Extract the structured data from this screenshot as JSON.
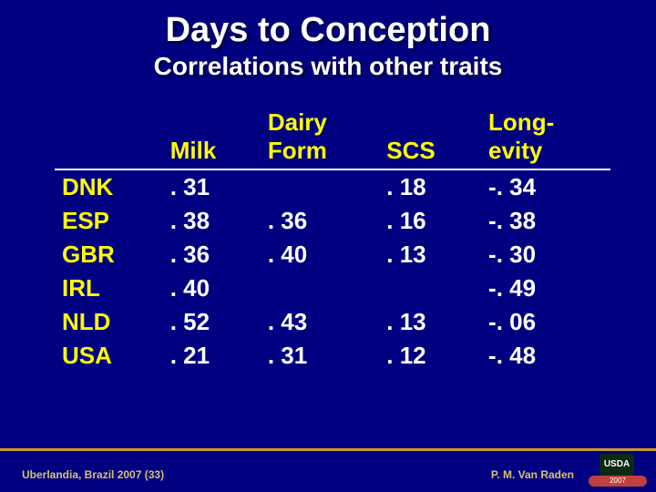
{
  "title": "Days to Conception",
  "subtitle": "Correlations with other traits",
  "columns": [
    "",
    "Milk",
    "Dairy Form",
    "SCS",
    "Long-evity"
  ],
  "rows": [
    {
      "label": "DNK",
      "milk": ". 31",
      "dairy": "",
      "scs": ". 18",
      "long": "-. 34"
    },
    {
      "label": "ESP",
      "milk": ". 38",
      "dairy": ". 36",
      "scs": ". 16",
      "long": "-. 38"
    },
    {
      "label": "GBR",
      "milk": ". 36",
      "dairy": ". 40",
      "scs": ". 13",
      "long": "-. 30"
    },
    {
      "label": "IRL",
      "milk": ". 40",
      "dairy": "",
      "scs": "",
      "long": "-. 49"
    },
    {
      "label": "NLD",
      "milk": ". 52",
      "dairy": ". 43",
      "scs": ". 13",
      "long": "-. 06"
    },
    {
      "label": "USA",
      "milk": ". 21",
      "dairy": ". 31",
      "scs": ". 12",
      "long": "-. 48"
    }
  ],
  "footer": {
    "left": "Uberlandia, Brazil 2007 (33)",
    "right": "P. M. Van Raden",
    "logo_text": "USDA",
    "year": "2007"
  },
  "colors": {
    "background": "#000080",
    "heading": "#ffff00",
    "body": "#ffffff",
    "footer_line": "#cc9933",
    "footer_text": "#d8c070"
  }
}
